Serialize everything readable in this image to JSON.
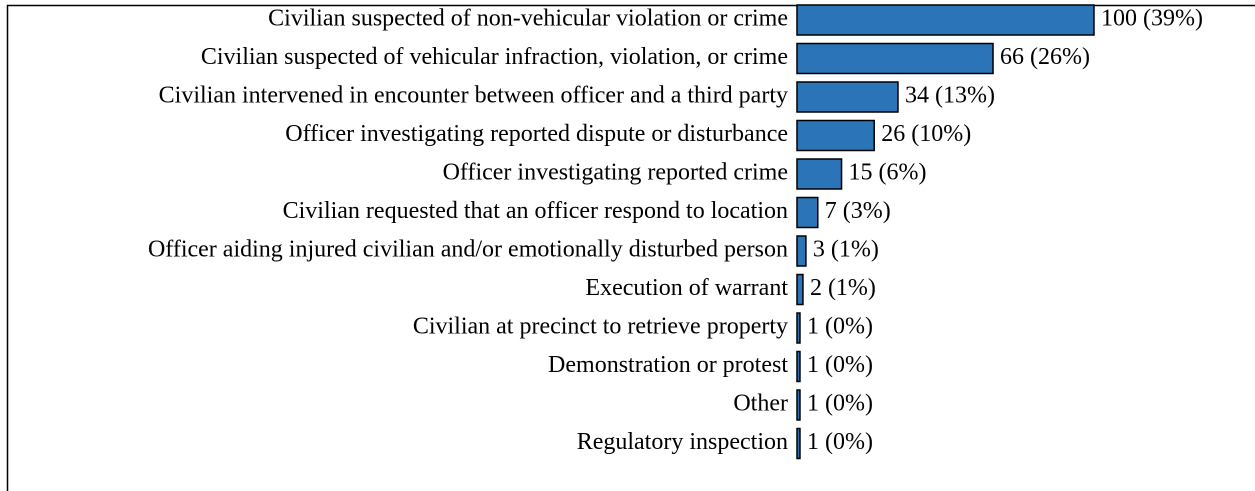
{
  "chart_data": {
    "type": "bar",
    "orientation": "horizontal",
    "color": "#2b74b8",
    "categories": [
      "Civilian suspected of non-vehicular violation or crime",
      "Civilian suspected of vehicular infraction, violation, or crime",
      "Civilian intervened in encounter between officer and a third party",
      "Officer investigating reported dispute or disturbance",
      "Officer investigating reported crime",
      "Civilian requested that an officer respond to location",
      "Officer aiding injured civilian and/or emotionally disturbed person",
      "Execution of warrant",
      "Civilian at precinct to retrieve property",
      "Demonstration or protest",
      "Other",
      "Regulatory inspection"
    ],
    "values": [
      100,
      66,
      34,
      26,
      15,
      7,
      3,
      2,
      1,
      1,
      1,
      1
    ],
    "value_labels": [
      "100 (39%)",
      "66 (26%)",
      "34 (13%)",
      "26 (10%)",
      "15 (6%)",
      "7 (3%)",
      "3 (1%)",
      "2 (1%)",
      "1 (0%)",
      "1 (0%)",
      "1 (0%)",
      "1 (0%)"
    ]
  }
}
